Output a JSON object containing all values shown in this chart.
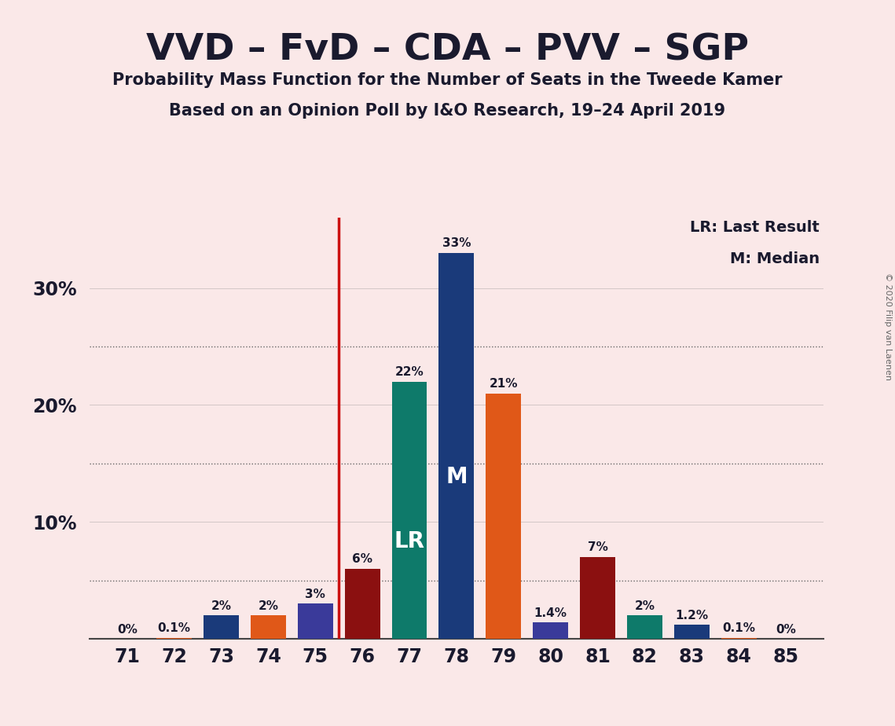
{
  "title": "VVD – FvD – CDA – PVV – SGP",
  "subtitle1": "Probability Mass Function for the Number of Seats in the Tweede Kamer",
  "subtitle2": "Based on an Opinion Poll by I&O Research, 19–24 April 2019",
  "copyright": "© 2020 Filip van Laenen",
  "legend1": "LR: Last Result",
  "legend2": "M: Median",
  "background_color": "#fae8e8",
  "seats": [
    71,
    72,
    73,
    74,
    75,
    76,
    77,
    78,
    79,
    80,
    81,
    82,
    83,
    84,
    85
  ],
  "values": [
    0.0,
    0.1,
    2.0,
    2.0,
    3.0,
    6.0,
    22.0,
    33.0,
    21.0,
    1.4,
    7.0,
    2.0,
    1.2,
    0.1,
    0.0
  ],
  "labels": [
    "0%",
    "0.1%",
    "2%",
    "2%",
    "3%",
    "6%",
    "22%",
    "33%",
    "21%",
    "1.4%",
    "7%",
    "2%",
    "1.2%",
    "0.1%",
    "0%"
  ],
  "bar_colors": [
    "#1a3a7a",
    "#e05818",
    "#1a3a7a",
    "#e05818",
    "#3a3a9a",
    "#8b1010",
    "#0e7a6a",
    "#1a3a7a",
    "#e05818",
    "#3a3a9a",
    "#8b1010",
    "#0e7a6a",
    "#1a3a7a",
    "#e05818",
    "#3a3a9a"
  ],
  "lr_seat": 77,
  "median_seat": 78,
  "vline_seat": 75.5,
  "ylim": [
    0,
    36
  ],
  "text_color": "#1a1a2e",
  "vline_color": "#cc1010",
  "label_LR_color": "#ffffff",
  "label_M_color": "#ffffff",
  "dotted_lines": [
    5,
    15,
    25
  ],
  "solid_lines": [
    10,
    20,
    30
  ],
  "ytick_positions": [
    10,
    20,
    30
  ],
  "ytick_labels": [
    "10%",
    "20%",
    "30%"
  ]
}
